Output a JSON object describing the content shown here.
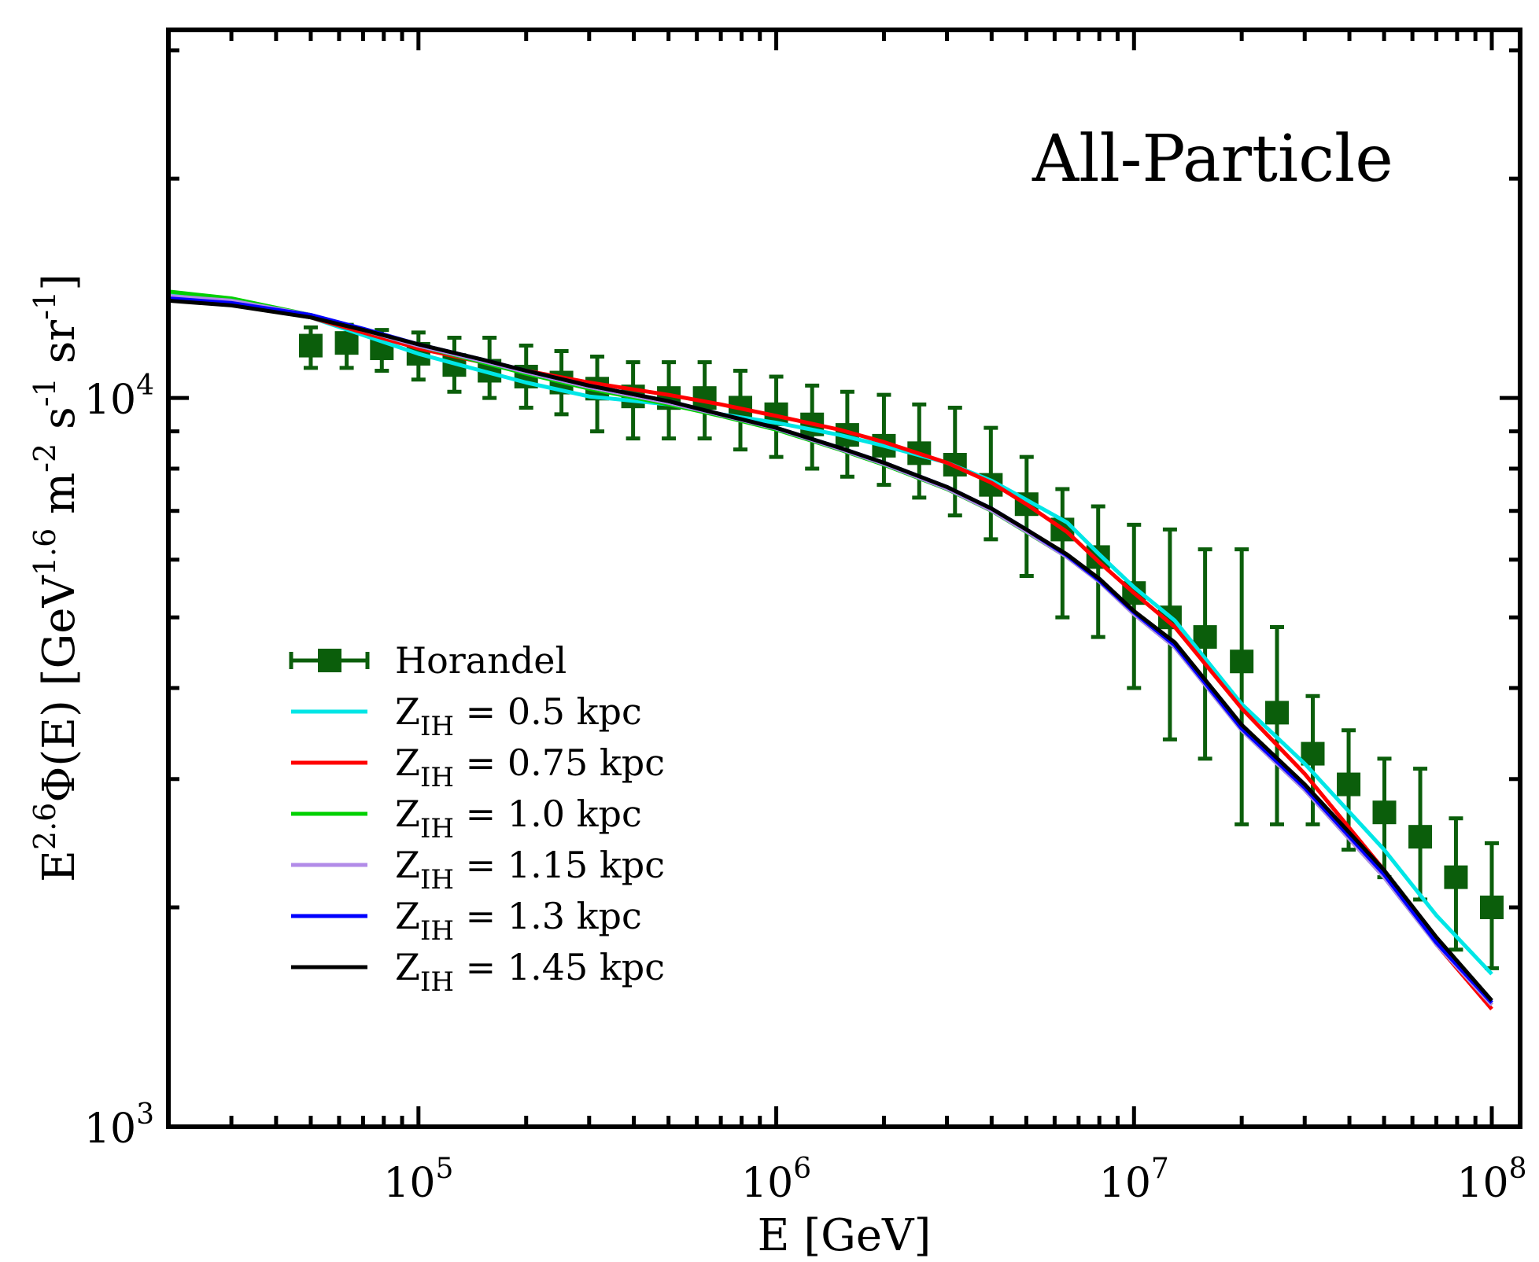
{
  "chart_data": {
    "type": "line",
    "title": "All-Particle",
    "xlabel": "E [GeV]",
    "ylabel": "E^{2.6}Φ(E) [GeV^{1.6} m^{-2} s^{-1} sr^{-1}]",
    "ylabel_parts": {
      "E": "E",
      "exp1": "2.6",
      "phi": "Φ(E) [GeV",
      "exp2": "1.6",
      "m": " m",
      "exp3": "-2",
      "s": " s",
      "exp4": "-1",
      "sr": " sr",
      "exp5": "-1",
      "close": "]"
    },
    "xscale": "log",
    "yscale": "log",
    "xlim": [
      20000,
      120000000
    ],
    "ylim": [
      1000,
      32000
    ],
    "x_ticks": [
      {
        "value": 100000,
        "base": "10",
        "exp": "5"
      },
      {
        "value": 1000000,
        "base": "10",
        "exp": "6"
      },
      {
        "value": 10000000,
        "base": "10",
        "exp": "7"
      },
      {
        "value": 100000000,
        "base": "10",
        "exp": "8"
      }
    ],
    "y_ticks": [
      {
        "value": 1000,
        "base": "10",
        "exp": "3"
      },
      {
        "value": 10000,
        "base": "10",
        "exp": "4"
      }
    ],
    "legend_position": "lower-left",
    "series": [
      {
        "name": "Horandel",
        "label": "Horandel",
        "kind": "errorbar",
        "color": "#0b5e0b",
        "x": [
          50000,
          63000,
          79000,
          100000,
          126000,
          158000,
          200000,
          251000,
          316000,
          398000,
          501000,
          631000,
          794000,
          1000000,
          1260000,
          1580000,
          2000000,
          2510000,
          3160000,
          3980000,
          5010000,
          6310000,
          7940000,
          10000000,
          12600000,
          15800000,
          20000000,
          25100000,
          31600000,
          39800000,
          50100000,
          63100000,
          79400000,
          100000000
        ],
        "y": [
          11800,
          11900,
          11700,
          11500,
          11100,
          10900,
          10700,
          10500,
          10300,
          10050,
          10000,
          10000,
          9700,
          9500,
          9200,
          8900,
          8600,
          8400,
          8100,
          7600,
          7150,
          6600,
          6050,
          5400,
          5000,
          4700,
          4350,
          3700,
          3250,
          2950,
          2700,
          2500,
          2200,
          2000
        ],
        "y_low": [
          11000,
          11000,
          10900,
          10600,
          10200,
          10000,
          9700,
          9500,
          9000,
          8800,
          8800,
          8800,
          8500,
          8300,
          8000,
          7800,
          7600,
          7300,
          6900,
          6400,
          5700,
          5000,
          4700,
          4000,
          3400,
          3200,
          2600,
          2600,
          2600,
          2400,
          2200,
          2050,
          1750,
          1650
        ],
        "y_high": [
          12500,
          12600,
          12400,
          12300,
          12100,
          12100,
          11800,
          11600,
          11400,
          11200,
          11200,
          11200,
          10900,
          10700,
          10400,
          10200,
          10100,
          9800,
          9700,
          9100,
          8300,
          7500,
          7100,
          6700,
          6600,
          6200,
          6200,
          4850,
          3900,
          3500,
          3200,
          3100,
          2650,
          2450
        ]
      },
      {
        "name": "Z_IH = 0.5 kpc",
        "label_main": "Z",
        "label_sub": "IH",
        "label_rest": " = 0.5 kpc",
        "kind": "line",
        "color": "#00e6e6",
        "x": [
          20000,
          30000,
          50000,
          70000,
          100000,
          150000,
          200000,
          300000,
          500000,
          700000,
          1000000,
          1500000,
          2000000,
          3000000,
          4000000,
          5000000,
          6500000,
          8000000,
          10000000,
          13000000,
          20000000,
          30000000,
          50000000,
          70000000,
          100000000
        ],
        "y": [
          13900,
          13600,
          12900,
          12200,
          11500,
          10900,
          10500,
          10050,
          9800,
          9500,
          9250,
          8900,
          8600,
          8150,
          7700,
          7250,
          6750,
          6100,
          5500,
          4950,
          3800,
          3150,
          2400,
          1950,
          1620
        ]
      },
      {
        "name": "Z_IH = 0.75 kpc",
        "label_main": "Z",
        "label_sub": "IH",
        "label_rest": " = 0.75 kpc",
        "kind": "line",
        "color": "#ff0000",
        "x": [
          20000,
          30000,
          50000,
          70000,
          100000,
          150000,
          200000,
          300000,
          500000,
          700000,
          1000000,
          1500000,
          2000000,
          3000000,
          4000000,
          5000000,
          6500000,
          8000000,
          10000000,
          13000000,
          20000000,
          30000000,
          50000000,
          70000000,
          100000000
        ],
        "y": [
          13800,
          13500,
          12900,
          12300,
          11700,
          11200,
          10900,
          10500,
          10100,
          9800,
          9450,
          9050,
          8700,
          8150,
          7650,
          7150,
          6550,
          5950,
          5400,
          4850,
          3750,
          3050,
          2250,
          1780,
          1450
        ]
      },
      {
        "name": "Z_IH = 1.0 kpc",
        "label_main": "Z",
        "label_sub": "IH",
        "label_rest": " = 1.0 kpc",
        "kind": "line",
        "color": "#00d000",
        "x": [
          20000,
          30000,
          50000,
          70000,
          100000,
          150000,
          200000,
          300000,
          500000,
          700000,
          1000000,
          1500000,
          2000000,
          3000000,
          4000000,
          5000000,
          6500000,
          8000000,
          10000000,
          13000000,
          20000000,
          30000000,
          50000000,
          70000000,
          100000000
        ],
        "y": [
          14000,
          13700,
          13000,
          12400,
          11800,
          11200,
          10800,
          10300,
          9800,
          9450,
          9050,
          8500,
          8100,
          7500,
          7000,
          6550,
          6050,
          5600,
          5050,
          4550,
          3500,
          2900,
          2200,
          1780,
          1470
        ]
      },
      {
        "name": "Z_IH = 1.15 kpc",
        "label_main": "Z",
        "label_sub": "IH",
        "label_rest": " = 1.15 kpc",
        "kind": "line",
        "color": "#b28be8",
        "x": [
          20000,
          30000,
          50000,
          70000,
          100000,
          150000,
          200000,
          300000,
          500000,
          700000,
          1000000,
          1500000,
          2000000,
          3000000,
          4000000,
          5000000,
          6500000,
          8000000,
          10000000,
          13000000,
          20000000,
          30000000,
          50000000,
          70000000,
          100000000
        ],
        "y": [
          13800,
          13600,
          13000,
          12400,
          11800,
          11250,
          10850,
          10350,
          9850,
          9480,
          9080,
          8520,
          8120,
          7510,
          7010,
          6560,
          6050,
          5600,
          5050,
          4550,
          3500,
          2900,
          2200,
          1780,
          1470
        ]
      },
      {
        "name": "Z_IH = 1.3 kpc",
        "label_main": "Z",
        "label_sub": "IH",
        "label_rest": " = 1.3 kpc",
        "kind": "line",
        "color": "#0000ff",
        "x": [
          20000,
          30000,
          50000,
          70000,
          100000,
          150000,
          200000,
          300000,
          500000,
          700000,
          1000000,
          1500000,
          2000000,
          3000000,
          4000000,
          5000000,
          6500000,
          8000000,
          10000000,
          13000000,
          20000000,
          30000000,
          50000000,
          70000000,
          100000000
        ],
        "y": [
          13700,
          13500,
          13000,
          12450,
          11850,
          11300,
          10900,
          10400,
          9900,
          9500,
          9100,
          8550,
          8150,
          7550,
          7050,
          6600,
          6080,
          5620,
          5080,
          4580,
          3520,
          2920,
          2220,
          1790,
          1480
        ]
      },
      {
        "name": "Z_IH = 1.45 kpc",
        "label_main": "Z",
        "label_sub": "IH",
        "label_rest": " = 1.45 kpc",
        "kind": "line",
        "color": "#000000",
        "x": [
          20000,
          30000,
          50000,
          70000,
          100000,
          150000,
          200000,
          300000,
          500000,
          700000,
          1000000,
          1500000,
          2000000,
          3000000,
          4000000,
          5000000,
          6500000,
          8000000,
          10000000,
          13000000,
          20000000,
          30000000,
          50000000,
          70000000,
          100000000
        ],
        "y": [
          13600,
          13400,
          12900,
          12400,
          11850,
          11300,
          10900,
          10400,
          9900,
          9500,
          9100,
          8550,
          8150,
          7550,
          7050,
          6600,
          6100,
          5650,
          5100,
          4620,
          3560,
          2950,
          2250,
          1820,
          1490
        ]
      }
    ]
  }
}
